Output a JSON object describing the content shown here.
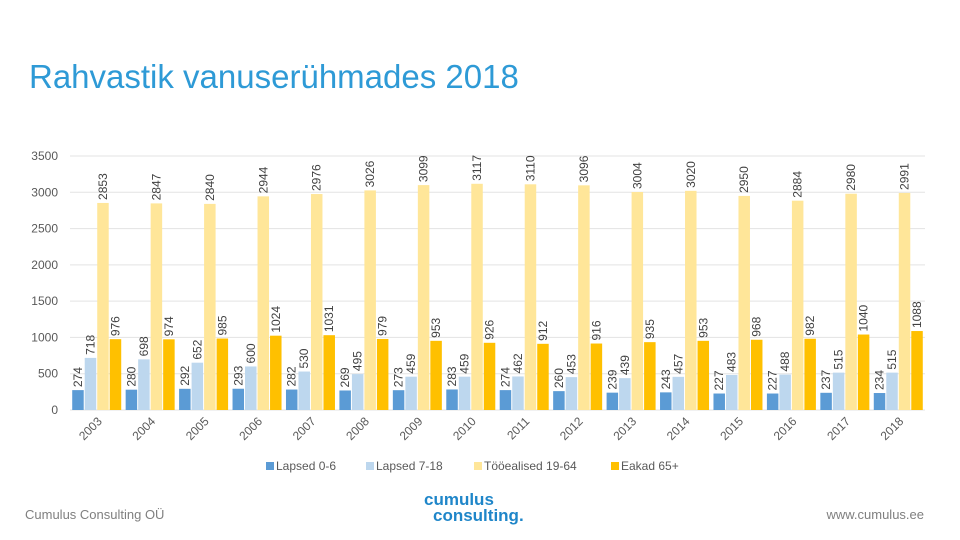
{
  "slide": {
    "title": "Rahvastik vanuserühmades 2018",
    "footer_left": "Cumulus Consulting OÜ",
    "footer_right": "www.cumulus.ee",
    "logo_line1": "cumulus",
    "logo_line2": "consulting."
  },
  "chart_data": {
    "type": "bar",
    "title": "",
    "xlabel": "",
    "ylabel": "",
    "ylim": [
      0,
      3500
    ],
    "yticks": [
      0,
      500,
      1000,
      1500,
      2000,
      2500,
      3000,
      3500
    ],
    "legend_position": "bottom",
    "categories": [
      "2003",
      "2004",
      "2005",
      "2006",
      "2007",
      "2008",
      "2009",
      "2010",
      "2011",
      "2012",
      "2013",
      "2014",
      "2015",
      "2016",
      "2017",
      "2018"
    ],
    "series": [
      {
        "name": "Lapsed 0-6",
        "color": "#5b9bd5",
        "values": [
          274,
          280,
          292,
          293,
          282,
          269,
          273,
          283,
          274,
          260,
          239,
          243,
          227,
          227,
          237,
          234
        ]
      },
      {
        "name": "Lapsed 7-18",
        "color": "#bdd7ee",
        "values": [
          718,
          698,
          652,
          600,
          530,
          495,
          459,
          459,
          462,
          453,
          439,
          457,
          483,
          488,
          515,
          515
        ]
      },
      {
        "name": "Tööealised 19-64",
        "color": "#ffe699",
        "values": [
          2853,
          2847,
          2840,
          2944,
          2976,
          3026,
          3099,
          3117,
          3110,
          3096,
          3004,
          3020,
          2950,
          2884,
          2980,
          2991
        ]
      },
      {
        "name": "Eakad 65+",
        "color": "#ffc000",
        "values": [
          976,
          974,
          985,
          1024,
          1031,
          979,
          953,
          926,
          912,
          916,
          935,
          953,
          968,
          982,
          1040,
          1088
        ]
      }
    ]
  }
}
